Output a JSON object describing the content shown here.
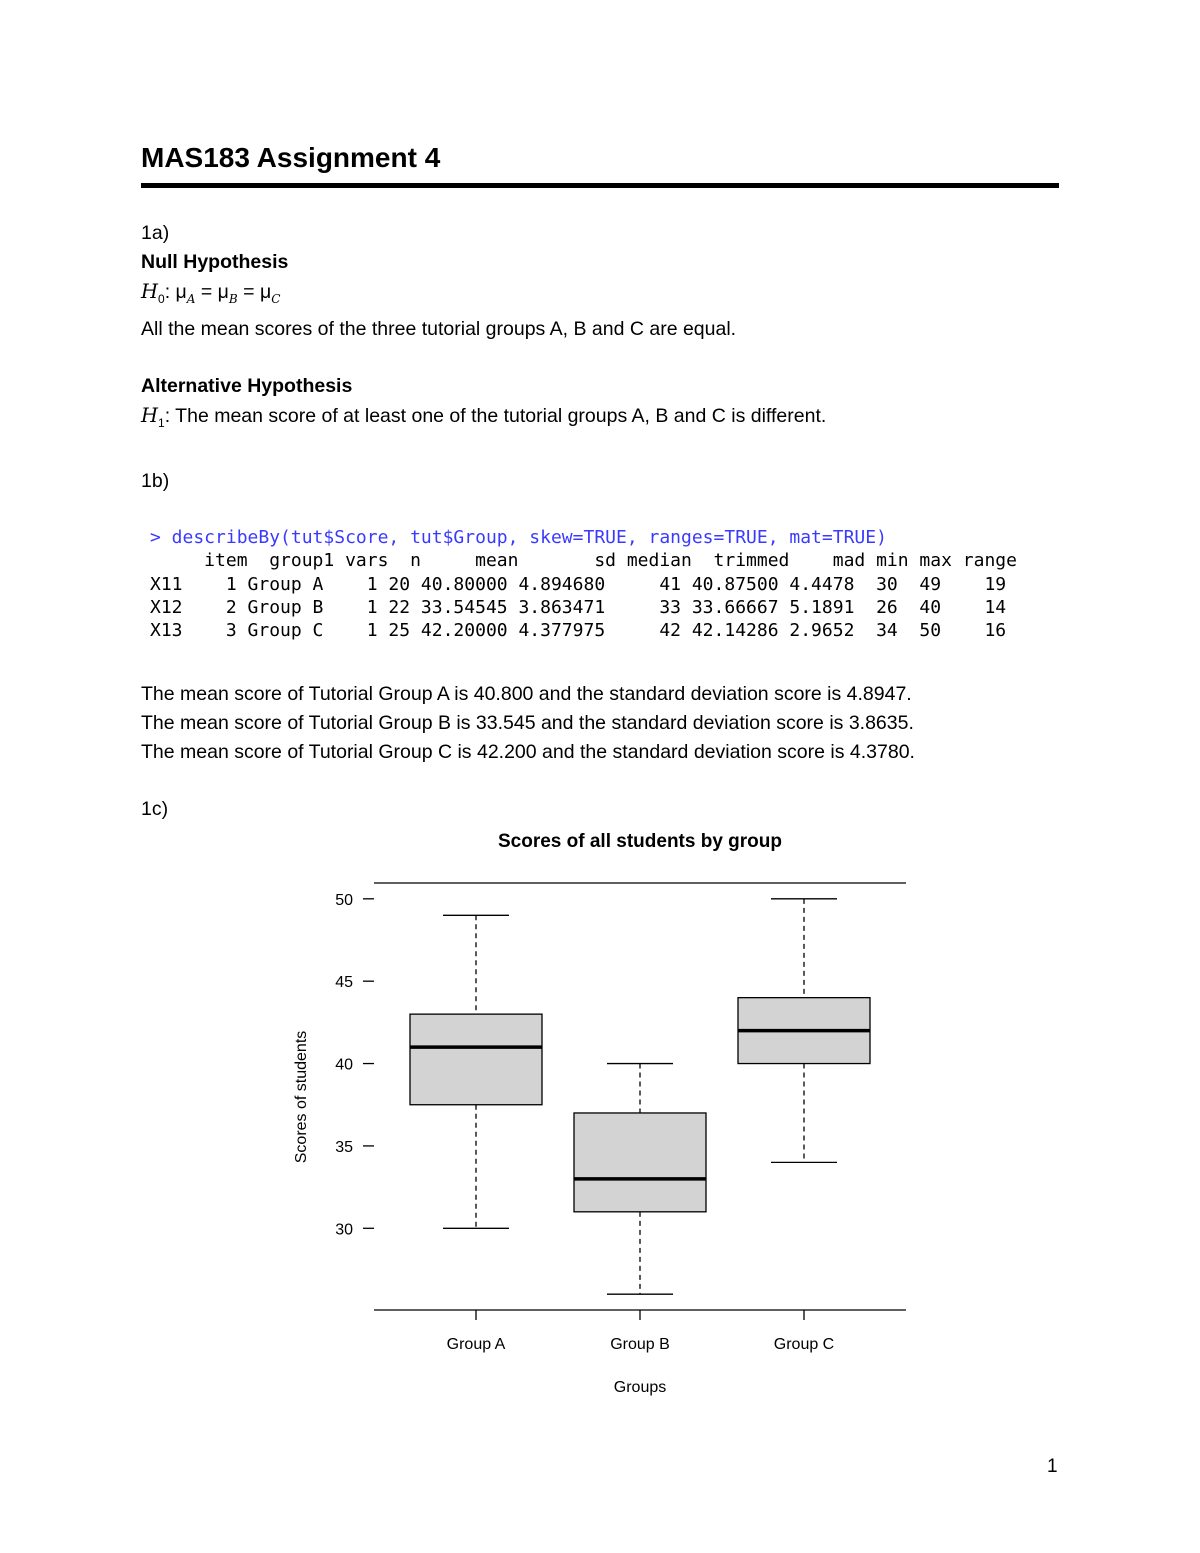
{
  "title": "MAS183 Assignment 4",
  "q1a": {
    "label": "1a)",
    "null_heading": "Null Hypothesis",
    "h0_symbol": "H",
    "h0_sub": "0",
    "h0_rest": ": μ",
    "muA_sub": "A",
    "eq1": " = μ",
    "muB_sub": "B",
    "eq2": " = μ",
    "muC_sub": "C",
    "null_text": "All the mean scores of the three tutorial groups A, B and C are equal.",
    "alt_heading": "Alternative Hypothesis",
    "h1_symbol": "H",
    "h1_sub": "1",
    "alt_text": ": The mean score of at least one of the tutorial groups A, B and C is different."
  },
  "q1b": {
    "label": "1b)",
    "command": "> describeBy(tut$Score, tut$Group, skew=TRUE, ranges=TRUE, mat=TRUE)",
    "header": "     item  group1 vars  n     mean       sd median  trimmed    mad min max range",
    "rows": [
      "X11    1 Group A    1 20 40.80000 4.894680     41 40.87500 4.4478  30  49    19",
      "X12    2 Group B    1 22 33.54545 3.863471     33 33.66667 5.1891  26  40    14",
      "X13    3 Group C    1 25 42.20000 4.377975     42 42.14286 2.9652  34  50    16"
    ],
    "summary": [
      "The mean score of Tutorial Group A is 40.800 and the standard deviation score is 4.8947.",
      "The mean score of Tutorial Group B is 33.545 and the standard deviation score is 3.8635.",
      "The mean score of Tutorial Group C is 42.200 and the standard deviation score is 4.3780."
    ]
  },
  "q1c": {
    "label": "1c)"
  },
  "chart_data": {
    "type": "boxplot",
    "title": "Scores of all students by group",
    "xlabel": "Groups",
    "ylabel": "Scores of students",
    "categories": [
      "Group A",
      "Group B",
      "Group C"
    ],
    "boxes": [
      {
        "name": "Group A",
        "min": 30,
        "q1": 37.5,
        "median": 41,
        "q3": 43,
        "max": 49
      },
      {
        "name": "Group B",
        "min": 26,
        "q1": 31,
        "median": 33,
        "q3": 37,
        "max": 40
      },
      {
        "name": "Group C",
        "min": 34,
        "q1": 40,
        "median": 42,
        "q3": 44,
        "max": 50
      }
    ],
    "yticks": [
      "30",
      "35",
      "40",
      "45",
      "50"
    ],
    "ylim": [
      25.04,
      50.96
    ],
    "box_fill": "#d3d3d3",
    "grid": false
  },
  "page_number": "1"
}
